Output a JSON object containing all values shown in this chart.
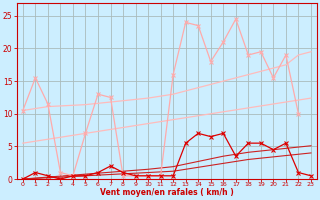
{
  "x": [
    0,
    1,
    2,
    3,
    4,
    5,
    6,
    7,
    8,
    9,
    10,
    11,
    12,
    13,
    14,
    15,
    16,
    17,
    18,
    19,
    20,
    21,
    22,
    23
  ],
  "rafales": [
    10.5,
    15.5,
    11.5,
    1.0,
    0.5,
    7.0,
    13.0,
    12.5,
    0.5,
    0.5,
    0.5,
    0.5,
    16.0,
    24.0,
    23.5,
    18.0,
    21.0,
    24.5,
    19.0,
    19.5,
    15.5,
    19.0,
    10.0,
    null
  ],
  "vent_moyen": [
    0.0,
    1.0,
    0.5,
    0.0,
    0.5,
    0.5,
    1.0,
    2.0,
    1.0,
    0.5,
    0.5,
    0.5,
    0.5,
    5.5,
    7.0,
    6.5,
    7.0,
    3.5,
    5.5,
    5.5,
    4.5,
    5.5,
    1.0,
    0.5
  ],
  "trend_rafales_low": [
    5.5,
    5.8,
    6.1,
    6.4,
    6.7,
    7.0,
    7.3,
    7.6,
    7.9,
    8.2,
    8.5,
    8.8,
    9.1,
    9.4,
    9.7,
    10.0,
    10.3,
    10.6,
    10.9,
    11.2,
    11.5,
    11.8,
    12.1,
    12.4
  ],
  "trend_rafales_high": [
    10.5,
    10.8,
    11.1,
    11.2,
    11.3,
    11.4,
    11.6,
    11.8,
    12.0,
    12.2,
    12.4,
    12.7,
    13.0,
    13.5,
    14.0,
    14.5,
    15.0,
    15.5,
    16.0,
    16.5,
    17.0,
    17.5,
    19.0,
    19.5
  ],
  "trend_moyen_low": [
    0.0,
    0.1,
    0.2,
    0.3,
    0.4,
    0.5,
    0.6,
    0.7,
    0.8,
    0.9,
    1.0,
    1.1,
    1.2,
    1.5,
    1.8,
    2.1,
    2.4,
    2.7,
    3.0,
    3.2,
    3.4,
    3.6,
    3.8,
    4.0
  ],
  "trend_moyen_high": [
    0.0,
    0.15,
    0.3,
    0.45,
    0.6,
    0.75,
    0.9,
    1.05,
    1.2,
    1.35,
    1.5,
    1.7,
    1.9,
    2.3,
    2.7,
    3.1,
    3.5,
    3.8,
    4.1,
    4.3,
    4.5,
    4.7,
    4.9,
    5.1
  ],
  "bg_color": "#cceeff",
  "grid_color": "#aabbbb",
  "rafales_color": "#ffaaaa",
  "moyen_color": "#dd0000",
  "trend_light_color": "#ffbbbb",
  "trend_dark_color": "#cc2222",
  "xlabel": "Vent moyen/en rafales ( km/h )",
  "xlim": [
    -0.5,
    23.5
  ],
  "ylim": [
    0,
    27
  ],
  "yticks": [
    0,
    5,
    10,
    15,
    20,
    25
  ],
  "xticks": [
    0,
    1,
    2,
    3,
    4,
    5,
    6,
    7,
    8,
    9,
    10,
    11,
    12,
    13,
    14,
    15,
    16,
    17,
    18,
    19,
    20,
    21,
    22,
    23
  ]
}
